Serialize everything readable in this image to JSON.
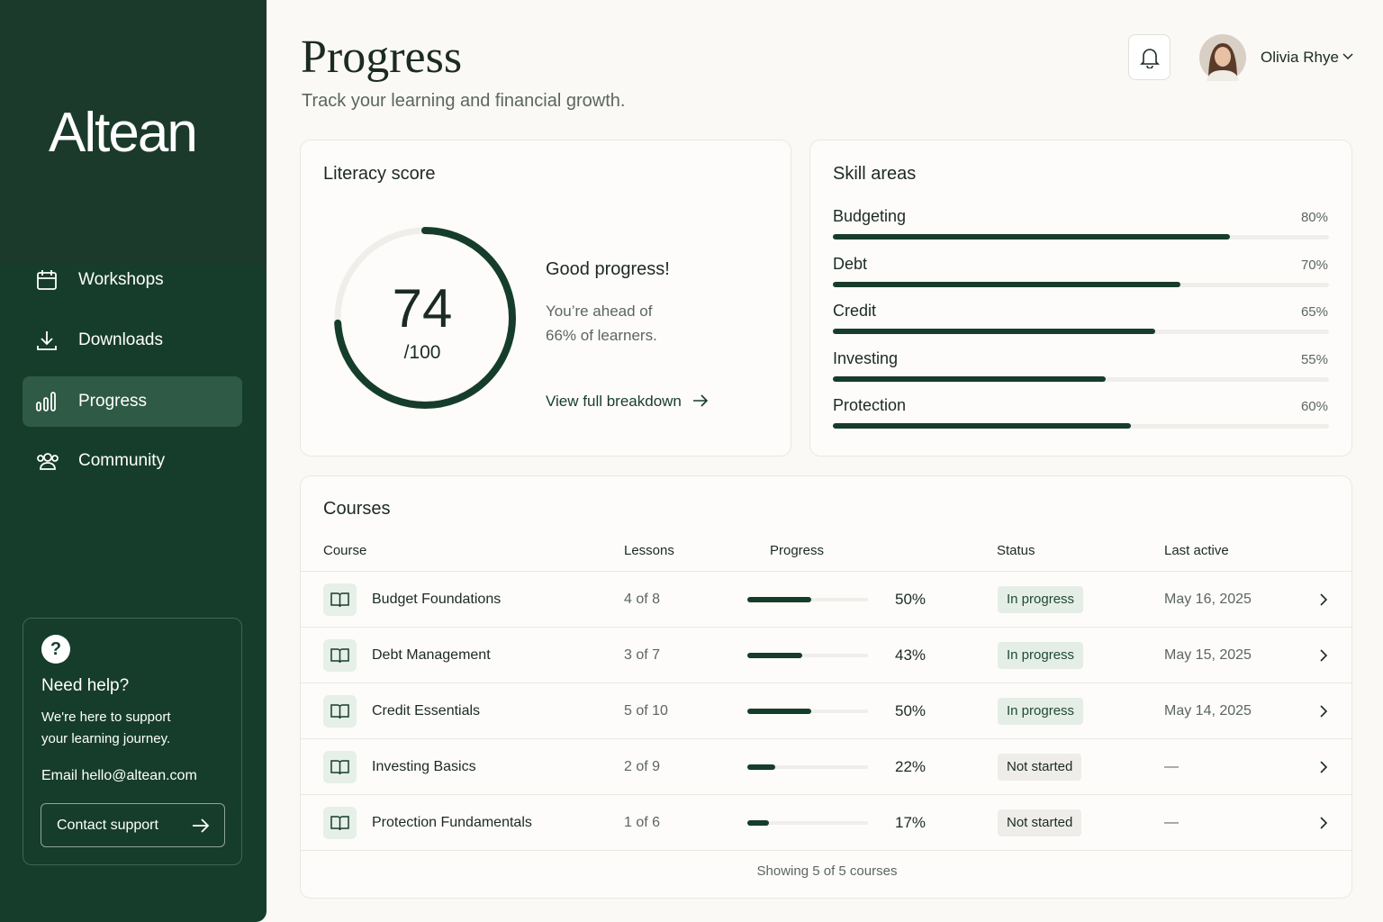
{
  "sidebar": {
    "logo": "Altean",
    "nav": [
      "Workshops",
      "Downloads",
      "Progress",
      "Community"
    ],
    "help": {
      "title": "Need help?",
      "text": "We're here to support your learning journey.",
      "email": "Email hello@altean.com",
      "button": "Contact support"
    }
  },
  "header": {
    "title": "Progress",
    "subtitle": "Track your learning and financial growth.",
    "user": "Olivia Rhye"
  },
  "literacy": {
    "title": "Literacy score",
    "score": 74,
    "max": {
      "value": 100,
      "label": "/100"
    },
    "headline": "Good progress!",
    "message": "You’re ahead of 66% of learners.",
    "link": "View full breakdown"
  },
  "skills": {
    "title": "Skill areas",
    "items": [
      {
        "name": "Budgeting",
        "value": 80,
        "label": "80%"
      },
      {
        "name": "Debt",
        "value": 70,
        "label": "70%"
      },
      {
        "name": "Credit",
        "value": 65,
        "label": "65%"
      },
      {
        "name": "Investing",
        "value": 55,
        "label": "55%"
      },
      {
        "name": "Protection",
        "value": 60,
        "label": "60%"
      }
    ]
  },
  "courses": {
    "title": "Courses",
    "columns": [
      "Course",
      "Lessons",
      "Progress",
      "Status",
      "Last active"
    ],
    "rows": [
      {
        "course": "Budget Foundations",
        "lessons": "4 of 8",
        "progress": 50,
        "progress_label": "50%",
        "status": "In progress",
        "last_active": "May 16, 2025"
      },
      {
        "course": "Debt Management",
        "lessons": "3 of 7",
        "progress": 43,
        "progress_label": "43%",
        "status": "In progress",
        "last_active": "May 15, 2025"
      },
      {
        "course": "Credit Essentials",
        "lessons": "5 of 10",
        "progress": 50,
        "progress_label": "50%",
        "status": "In progress",
        "last_active": "May 14, 2025"
      },
      {
        "course": "Investing Basics",
        "lessons": "2 of 9",
        "progress": 22,
        "progress_label": "22%",
        "status": "Not started",
        "last_active": "—"
      },
      {
        "course": "Protection Fundamentals",
        "lessons": "1 of 6",
        "progress": 17,
        "progress_label": "17%",
        "status": "Not started",
        "last_active": "—"
      }
    ],
    "footer": "Showing 5 of 5 courses"
  }
}
